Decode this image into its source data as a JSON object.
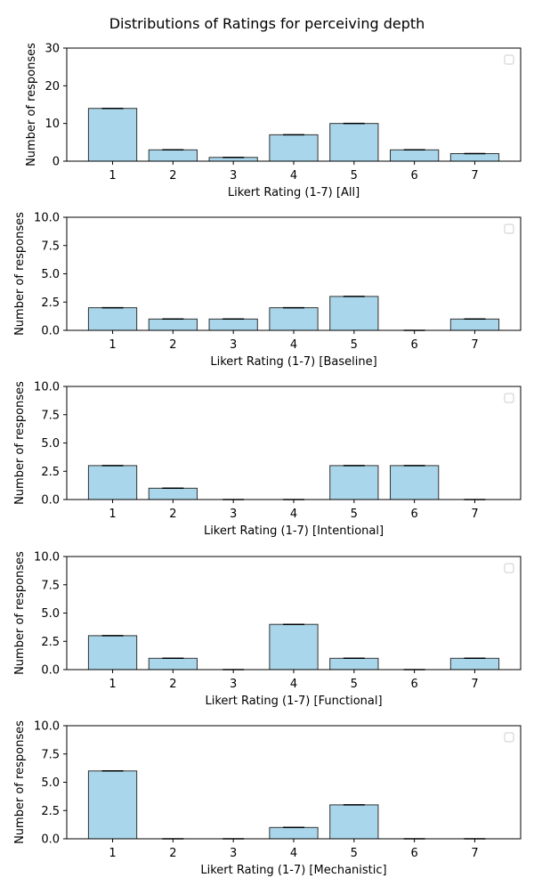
{
  "figure": {
    "title": "Distributions of Ratings for perceiving depth"
  },
  "chart_data": [
    {
      "type": "bar",
      "categories": [
        "1",
        "2",
        "3",
        "4",
        "5",
        "6",
        "7"
      ],
      "values": [
        14,
        3,
        1,
        7,
        10,
        3,
        2
      ],
      "xlabel": "Likert Rating (1-7) [All]",
      "ylabel": "Number of responses",
      "ylim": [
        0,
        30
      ],
      "yticks": [
        "0",
        "10",
        "20",
        "30"
      ],
      "bar_color": "#a9d6ea",
      "legend": "upper right (empty)",
      "grid": false
    },
    {
      "type": "bar",
      "categories": [
        "1",
        "2",
        "3",
        "4",
        "5",
        "6",
        "7"
      ],
      "values": [
        2,
        1,
        1,
        2,
        3,
        0,
        1
      ],
      "xlabel": "Likert Rating (1-7) [Baseline]",
      "ylabel": "Number of responses",
      "ylim": [
        0,
        10
      ],
      "yticks": [
        "0.0",
        "2.5",
        "5.0",
        "7.5",
        "10.0"
      ],
      "bar_color": "#a9d6ea",
      "legend": "upper right (empty)",
      "grid": false
    },
    {
      "type": "bar",
      "categories": [
        "1",
        "2",
        "3",
        "4",
        "5",
        "6",
        "7"
      ],
      "values": [
        3,
        1,
        0,
        0,
        3,
        3,
        0
      ],
      "xlabel": "Likert Rating (1-7) [Intentional]",
      "ylabel": "Number of responses",
      "ylim": [
        0,
        10
      ],
      "yticks": [
        "0.0",
        "2.5",
        "5.0",
        "7.5",
        "10.0"
      ],
      "bar_color": "#a9d6ea",
      "legend": "upper right (empty)",
      "grid": false
    },
    {
      "type": "bar",
      "categories": [
        "1",
        "2",
        "3",
        "4",
        "5",
        "6",
        "7"
      ],
      "values": [
        3,
        1,
        0,
        4,
        1,
        0,
        1
      ],
      "xlabel": "Likert Rating (1-7) [Functional]",
      "ylabel": "Number of responses",
      "ylim": [
        0,
        10
      ],
      "yticks": [
        "0.0",
        "2.5",
        "5.0",
        "7.5",
        "10.0"
      ],
      "bar_color": "#a9d6ea",
      "legend": "upper right (empty)",
      "grid": false
    },
    {
      "type": "bar",
      "categories": [
        "1",
        "2",
        "3",
        "4",
        "5",
        "6",
        "7"
      ],
      "values": [
        6,
        0,
        0,
        1,
        3,
        0,
        0
      ],
      "xlabel": "Likert Rating (1-7) [Mechanistic]",
      "ylabel": "Number of responses",
      "ylim": [
        0,
        10
      ],
      "yticks": [
        "0.0",
        "2.5",
        "5.0",
        "7.5",
        "10.0"
      ],
      "bar_color": "#a9d6ea",
      "legend": "upper right (empty)",
      "grid": false
    }
  ]
}
